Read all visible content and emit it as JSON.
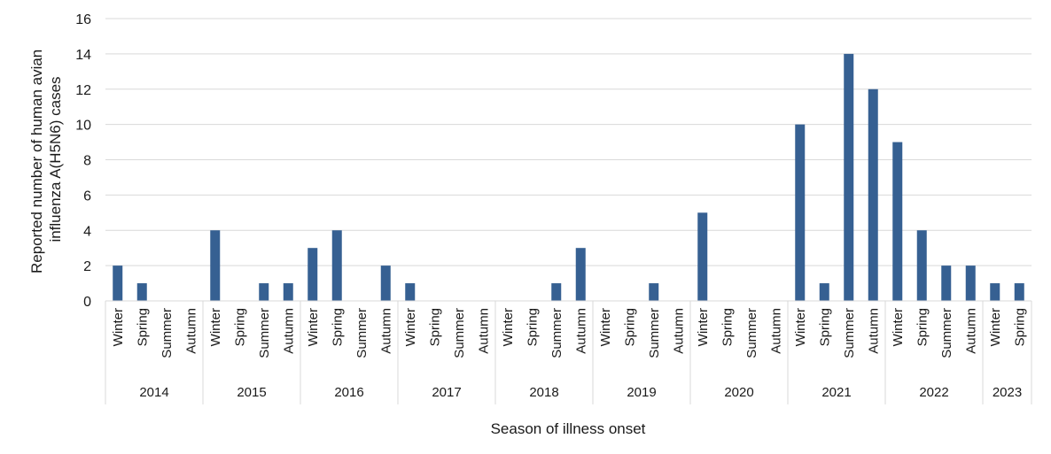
{
  "chart_data": {
    "type": "bar",
    "title": "",
    "xlabel": "Season of illness onset",
    "ylabel_lines": [
      "Reported number of human avian",
      "influenza A(H5N6) cases"
    ],
    "ylim": [
      0,
      16
    ],
    "yticks": [
      0,
      2,
      4,
      6,
      8,
      10,
      12,
      14,
      16
    ],
    "grid": true,
    "bar_color": "#366092",
    "grid_color": "#d9d9d9",
    "groups": [
      {
        "year": "2014",
        "seasons": [
          "Winter",
          "Spring",
          "Summer",
          "Autumn"
        ],
        "values": [
          2,
          1,
          0,
          0
        ]
      },
      {
        "year": "2015",
        "seasons": [
          "Winter",
          "Spring",
          "Summer",
          "Autumn"
        ],
        "values": [
          4,
          0,
          1,
          1
        ]
      },
      {
        "year": "2016",
        "seasons": [
          "Winter",
          "Spring",
          "Summer",
          "Autumn"
        ],
        "values": [
          3,
          4,
          0,
          2
        ]
      },
      {
        "year": "2017",
        "seasons": [
          "Winter",
          "Spring",
          "Summer",
          "Autumn"
        ],
        "values": [
          1,
          0,
          0,
          0
        ]
      },
      {
        "year": "2018",
        "seasons": [
          "Winter",
          "Spring",
          "Summer",
          "Autumn"
        ],
        "values": [
          0,
          0,
          1,
          3
        ]
      },
      {
        "year": "2019",
        "seasons": [
          "Winter",
          "Spring",
          "Summer",
          "Autumn"
        ],
        "values": [
          0,
          0,
          1,
          0
        ]
      },
      {
        "year": "2020",
        "seasons": [
          "Winter",
          "Spring",
          "Summer",
          "Autumn"
        ],
        "values": [
          5,
          0,
          0,
          0
        ]
      },
      {
        "year": "2021",
        "seasons": [
          "Winter",
          "Spring",
          "Summer",
          "Autumn"
        ],
        "values": [
          10,
          1,
          14,
          12
        ]
      },
      {
        "year": "2022",
        "seasons": [
          "Winter",
          "Spring",
          "Summer",
          "Autumn"
        ],
        "values": [
          9,
          4,
          2,
          2
        ]
      },
      {
        "year": "2023",
        "seasons": [
          "Winter",
          "Spring"
        ],
        "values": [
          1,
          1
        ]
      }
    ]
  }
}
